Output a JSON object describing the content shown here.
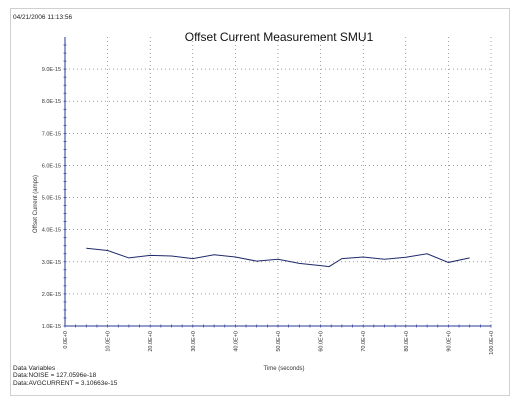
{
  "timestamp": "04/21/2006 11:13:56",
  "variables": {
    "header": "Data Variables",
    "lines": [
      "Data:NOISE = 127.0596e-18",
      "Data:AVGCURRENT = 3.10663e-15"
    ]
  },
  "chart_data": {
    "type": "line",
    "title": "Offset Current Measurement SMU1",
    "xlabel": "Time (seconds)",
    "ylabel": "Offset Current (amps)",
    "xlim": [
      0,
      100
    ],
    "ylim": [
      1e-15,
      1e-14
    ],
    "grid": true,
    "x_ticks": [
      0,
      10,
      20,
      30,
      40,
      50,
      60,
      70,
      80,
      90,
      100
    ],
    "x_tick_labels": [
      "0.0E+0",
      "10.0E+0",
      "20.0E+0",
      "30.0E+0",
      "40.0E+0",
      "50.0E+0",
      "60.0E+0",
      "70.0E+0",
      "80.0E+0",
      "90.0E+0",
      "100.0E+0"
    ],
    "y_ticks": [
      1e-15,
      2e-15,
      3e-15,
      4e-15,
      5e-15,
      6e-15,
      7e-15,
      8e-15,
      9e-15
    ],
    "y_tick_labels": [
      "1.0E-15",
      "2.0E-15",
      "3.0E-15",
      "4.0E-15",
      "5.0E-15",
      "6.0E-15",
      "7.0E-15",
      "8.0E-15",
      "9.0E-15"
    ],
    "series": [
      {
        "color": "#1f2a6b",
        "x": [
          5,
          10,
          15,
          20,
          25,
          30,
          35,
          40,
          45,
          50,
          55,
          60,
          62,
          65,
          70,
          75,
          80,
          85,
          90,
          95
        ],
        "y": [
          3.42e-15,
          3.35e-15,
          3.12e-15,
          3.2e-15,
          3.18e-15,
          3.1e-15,
          3.22e-15,
          3.15e-15,
          3.02e-15,
          3.08e-15,
          2.95e-15,
          2.88e-15,
          2.85e-15,
          3.1e-15,
          3.15e-15,
          3.08e-15,
          3.14e-15,
          3.25e-15,
          2.98e-15,
          3.12e-15
        ]
      }
    ]
  }
}
